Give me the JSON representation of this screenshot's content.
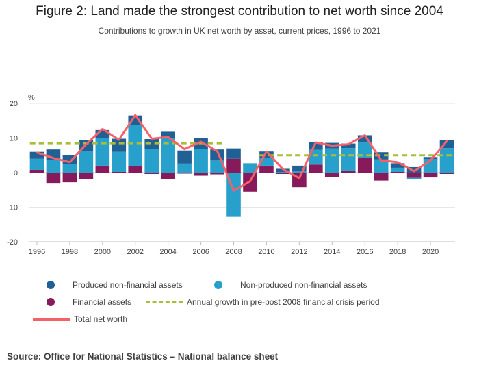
{
  "title": "Figure 2: Land made the strongest contribution to net worth since 2004",
  "subtitle": "Contributions to growth in UK net worth by asset, current prices, 1996 to 2021",
  "source": "Source: Office for National Statistics – National balance sheet",
  "colors": {
    "produced": "#206095",
    "non_produced": "#27a0cc",
    "financial": "#871a5b",
    "annual_avg": "#a8bd3a",
    "total": "#f66068",
    "grid": "#e6e6e6"
  },
  "legend": {
    "produced": "Produced non-financial assets",
    "non_produced": "Non-produced non-financial assets",
    "financial": "Financial assets",
    "annual_avg": "Annual growth in pre-post 2008 financial crisis period",
    "total": "Total net worth"
  },
  "chart_data": {
    "type": "bar",
    "stacked": true,
    "ylabel": "%",
    "ylim": [
      -20,
      20
    ],
    "yticks": [
      -20,
      -10,
      0,
      10,
      20
    ],
    "xticks": [
      1996,
      1998,
      2000,
      2002,
      2004,
      2006,
      2008,
      2010,
      2012,
      2014,
      2016,
      2018,
      2020
    ],
    "grid": true,
    "legend_position": "bottom",
    "categories": [
      1996,
      1997,
      1998,
      1999,
      2000,
      2001,
      2002,
      2003,
      2004,
      2005,
      2006,
      2007,
      2008,
      2009,
      2010,
      2011,
      2012,
      2013,
      2014,
      2015,
      2016,
      2017,
      2018,
      2019,
      2020,
      2021
    ],
    "series": [
      {
        "name": "Financial assets",
        "key": "financial",
        "kind": "bar",
        "values": [
          0.8,
          -3.0,
          -2.8,
          -1.8,
          2.0,
          0.2,
          1.8,
          -0.4,
          -1.8,
          -0.3,
          -0.9,
          -0.5,
          4.0,
          -5.5,
          2.0,
          -0.4,
          -4.2,
          2.3,
          -1.3,
          0.6,
          4.2,
          -2.3,
          0.2,
          -1.5,
          -1.4,
          -0.4
        ]
      },
      {
        "name": "Non-produced non-financial assets",
        "key": "non_produced",
        "kind": "bar",
        "values": [
          3.2,
          3.7,
          2.4,
          6.2,
          8.0,
          5.8,
          12.0,
          6.8,
          10.0,
          2.6,
          6.9,
          3.5,
          -12.8,
          2.7,
          2.3,
          0.2,
          0.5,
          4.3,
          7.0,
          6.5,
          4.5,
          3.8,
          1.2,
          -0.3,
          3.9,
          7.1
        ]
      },
      {
        "name": "Produced non-financial assets",
        "key": "produced",
        "kind": "bar",
        "values": [
          2.0,
          3.0,
          2.7,
          3.3,
          2.3,
          3.8,
          2.7,
          2.9,
          1.8,
          3.8,
          3.1,
          3.2,
          3.0,
          0,
          1.8,
          0.9,
          1.5,
          2.2,
          1.6,
          1.3,
          2.1,
          2.1,
          1.3,
          1.6,
          0.6,
          2.3
        ]
      },
      {
        "name": "Annual growth in pre-post 2008 financial crisis period",
        "key": "annual_avg",
        "kind": "dashed",
        "segments": [
          {
            "x": [
              1996,
              2007
            ],
            "y": 8.5
          },
          {
            "x": [
              2010,
              2021
            ],
            "y": 5.0
          }
        ]
      },
      {
        "name": "Total net worth",
        "key": "total",
        "kind": "line",
        "values": [
          5.8,
          4.2,
          3.0,
          8.2,
          12.6,
          9.5,
          16.6,
          9.8,
          10.3,
          6.8,
          8.9,
          6.2,
          -5.2,
          -2.5,
          6.1,
          1.0,
          -1.6,
          8.7,
          7.8,
          8.2,
          10.8,
          3.5,
          3.0,
          0.4,
          3.5,
          9.1
        ]
      }
    ]
  }
}
